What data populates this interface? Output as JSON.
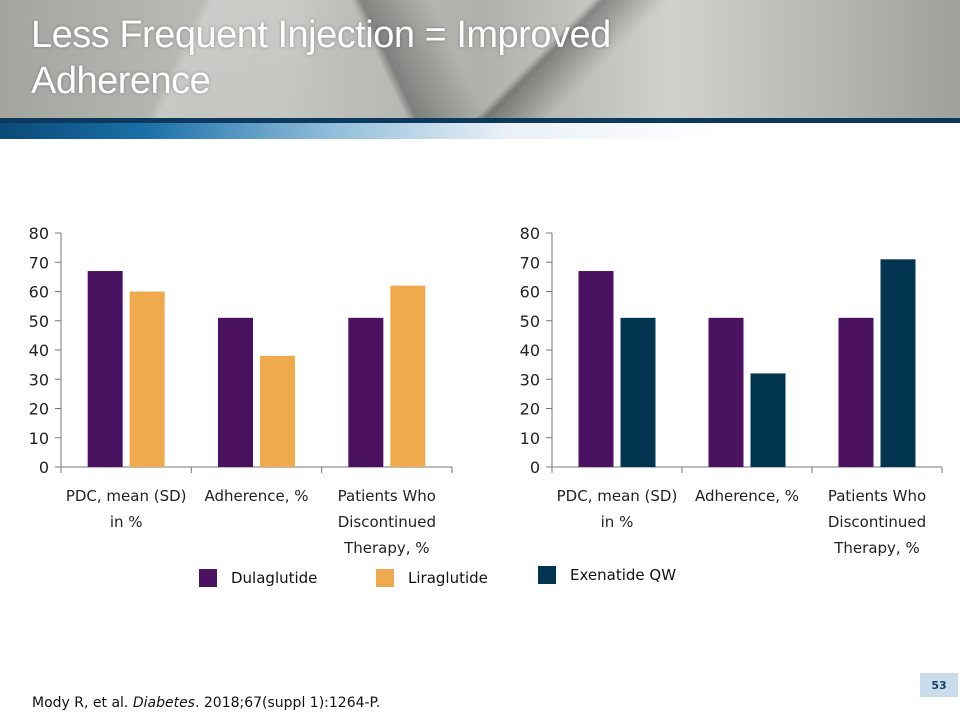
{
  "title": "Less Frequent Injection = Improved Adherence",
  "colors": {
    "dulaglutide": "#4a1260",
    "liraglutide": "#f0aa4e",
    "exenatide_qw": "#02354f"
  },
  "legend": [
    {
      "label": "Dulaglutide",
      "color": "#4a1260"
    },
    {
      "label": "Liraglutide",
      "color": "#f0aa4e"
    },
    {
      "label": "Exenatide QW",
      "color": "#02354f"
    }
  ],
  "chart_data": [
    {
      "type": "bar",
      "categories": [
        "PDC, mean (SD) in %",
        "Adherence, %",
        "Patients Who Discontinued Therapy, %"
      ],
      "series": [
        {
          "name": "Dulaglutide",
          "color": "#4a1260",
          "values": [
            67,
            51,
            51
          ]
        },
        {
          "name": "Liraglutide",
          "color": "#f0aa4e",
          "values": [
            60,
            38,
            62
          ]
        }
      ],
      "ylim": [
        0,
        80
      ],
      "yticks": [
        "0",
        "10",
        "20",
        "30",
        "40",
        "50",
        "60",
        "70",
        "80"
      ],
      "grid": false
    },
    {
      "type": "bar",
      "categories": [
        "PDC, mean (SD) in %",
        "Adherence, %",
        "Patients Who Discontinued Therapy, %"
      ],
      "series": [
        {
          "name": "Dulaglutide",
          "color": "#4a1260",
          "values": [
            67,
            51,
            51
          ]
        },
        {
          "name": "Exenatide QW",
          "color": "#02354f",
          "values": [
            51,
            32,
            71
          ]
        }
      ],
      "ylim": [
        0,
        80
      ],
      "yticks": [
        "0",
        "10",
        "20",
        "30",
        "40",
        "50",
        "60",
        "70",
        "80"
      ],
      "grid": false
    }
  ],
  "page_number": "53",
  "footer": {
    "authors": "Mody R, et al. ",
    "journal": "Diabetes",
    "rest": ". 2018;67(suppl 1):1264-P."
  }
}
